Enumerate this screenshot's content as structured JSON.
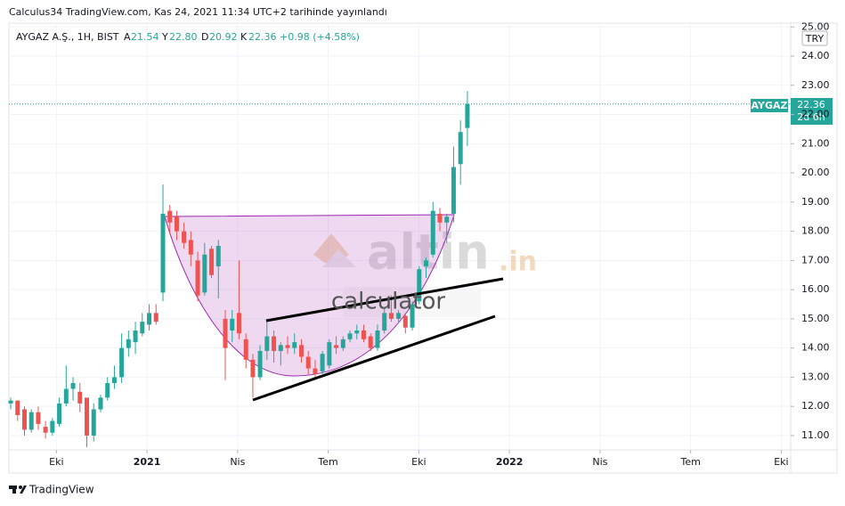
{
  "header": {
    "publisher": "Calculus34 TradingView.com, Kas 24, 2021 11:34 UTC+2 tarihinde yayınlandı",
    "symbol": "AYGAZ A.Ş., 1H, BIST",
    "open_key": "A",
    "open": "21.54",
    "high_key": "Y",
    "high": "22.80",
    "low_key": "D",
    "low": "20.92",
    "close_key": "K",
    "close": "22.36",
    "change": "+0.98 (+4.58%)"
  },
  "price_tag": {
    "name": "AYGAZ",
    "price": "22.36",
    "countdown": "2d 6h",
    "currency": "TRY"
  },
  "watermark": {
    "logo": "altin",
    "suffix": ".in",
    "subtitle": "calculator"
  },
  "footer": {
    "brand": "TradingView"
  },
  "chart_data": {
    "type": "candlestick",
    "up_color": "#26a69a",
    "down_color": "#ef5350",
    "price_line_color": "#26a69a",
    "xlim": [
      2020.619,
      2022.776
    ],
    "ylim": [
      10.51,
      25.13
    ],
    "xticks": [
      {
        "value": 2020.75,
        "label": "Eki"
      },
      2021,
      {
        "value": 2021.25,
        "label": "Nis"
      },
      {
        "value": 2021.5,
        "label": "Tem"
      },
      {
        "value": 2021.75,
        "label": "Eki"
      },
      2022,
      {
        "value": 2022.25,
        "label": "Nis"
      },
      {
        "value": 2022.5,
        "label": "Tem"
      },
      {
        "value": 2022.75,
        "label": "Eki"
      }
    ],
    "yticks": [
      {
        "value": 11,
        "label": "11.00"
      },
      {
        "value": 12,
        "label": "12.00"
      },
      {
        "value": 13,
        "label": "13.00"
      },
      {
        "value": 14,
        "label": "14.00"
      },
      {
        "value": 15,
        "label": "15.00"
      },
      {
        "value": 16,
        "label": "16.00"
      },
      {
        "value": 17,
        "label": "17.00"
      },
      {
        "value": 18,
        "label": "18.00"
      },
      {
        "value": 19,
        "label": "19.00"
      },
      {
        "value": 20,
        "label": "20.00"
      },
      {
        "value": 21,
        "label": "21.00"
      },
      {
        "value": 22,
        "label": "22.00"
      },
      {
        "value": 23,
        "label": "23.00"
      },
      {
        "value": 24,
        "label": "24.00"
      },
      {
        "value": 25,
        "label": "25.00"
      }
    ],
    "grid": true,
    "x": [
      2020.624,
      2020.643,
      2020.662,
      2020.681,
      2020.7,
      2020.72,
      2020.739,
      2020.758,
      2020.777,
      2020.796,
      2020.815,
      2020.834,
      2020.853,
      2020.872,
      2020.891,
      2020.91,
      2020.93,
      2020.949,
      2020.968,
      2020.987,
      2021.006,
      2021.025,
      2021.044,
      2021.063,
      2021.082,
      2021.102,
      2021.121,
      2021.14,
      2021.159,
      2021.178,
      2021.197,
      2021.216,
      2021.235,
      2021.254,
      2021.273,
      2021.292,
      2021.312,
      2021.331,
      2021.35,
      2021.369,
      2021.388,
      2021.407,
      2021.426,
      2021.445,
      2021.464,
      2021.484,
      2021.503,
      2021.522,
      2021.541,
      2021.56,
      2021.579,
      2021.598,
      2021.617,
      2021.636,
      2021.655,
      2021.674,
      2021.694,
      2021.713,
      2021.732,
      2021.751,
      2021.77,
      2021.789,
      2021.808,
      2021.827,
      2021.846,
      2021.865,
      2021.884
    ],
    "open": [
      12.1,
      12.2,
      11.9,
      11.2,
      11.8,
      11.3,
      11.1,
      11.4,
      12.1,
      12.6,
      12.5,
      12.3,
      11.0,
      11.9,
      12.3,
      12.8,
      13.0,
      14.0,
      14.2,
      14.5,
      14.8,
      15.2,
      15.9,
      18.7,
      18.5,
      18.0,
      17.7,
      17.0,
      15.9,
      17.4,
      16.8,
      15.0,
      14.6,
      15.2,
      14.3,
      13.6,
      13.0,
      13.9,
      14.4,
      13.9,
      14.1,
      14.0,
      14.1,
      13.7,
      13.3,
      13.2,
      13.4,
      14.1,
      14.0,
      14.3,
      14.5,
      14.6,
      14.4,
      14.0,
      14.6,
      15.2,
      15.0,
      15.1,
      14.7,
      15.6,
      16.8,
      17.2,
      18.6,
      18.3,
      18.6,
      20.3,
      21.54
    ],
    "high": [
      12.3,
      12.2,
      12.0,
      11.9,
      12.0,
      11.5,
      11.6,
      12.3,
      13.4,
      13.0,
      12.8,
      12.3,
      12.1,
      12.4,
      13.0,
      13.4,
      14.5,
      14.6,
      14.9,
      15.2,
      15.5,
      15.5,
      19.6,
      18.9,
      18.7,
      18.3,
      18.0,
      17.3,
      17.6,
      17.5,
      17.7,
      15.3,
      15.3,
      17.0,
      14.5,
      13.8,
      14.1,
      14.9,
      14.6,
      14.2,
      14.4,
      14.5,
      14.3,
      13.9,
      13.6,
      13.9,
      14.3,
      14.4,
      14.4,
      14.6,
      14.8,
      14.8,
      14.5,
      14.8,
      15.4,
      15.8,
      15.3,
      15.2,
      15.6,
      16.8,
      17.1,
      19.0,
      18.8,
      18.6,
      20.9,
      21.8,
      22.8
    ],
    "low": [
      11.9,
      11.5,
      11.0,
      11.1,
      11.2,
      10.9,
      11.0,
      11.3,
      12.0,
      12.2,
      11.8,
      10.6,
      10.8,
      11.8,
      12.2,
      12.6,
      12.8,
      13.7,
      13.8,
      14.4,
      14.6,
      14.8,
      15.6,
      17.9,
      17.7,
      17.4,
      16.8,
      15.6,
      15.8,
      16.4,
      15.7,
      12.9,
      14.2,
      14.3,
      13.3,
      12.3,
      12.9,
      13.6,
      13.5,
      13.4,
      13.8,
      13.8,
      13.5,
      13.1,
      12.9,
      13.1,
      13.3,
      13.8,
      13.9,
      14.2,
      14.3,
      14.2,
      13.9,
      13.9,
      14.5,
      14.9,
      14.9,
      14.5,
      14.6,
      15.5,
      16.4,
      17.1,
      18.0,
      17.6,
      18.3,
      19.6,
      20.92
    ],
    "close": [
      12.2,
      11.7,
      11.2,
      11.8,
      11.4,
      11.1,
      11.5,
      12.1,
      12.6,
      12.8,
      12.1,
      11.0,
      11.9,
      12.3,
      12.8,
      13.0,
      14.0,
      14.3,
      14.6,
      14.9,
      15.2,
      14.9,
      18.6,
      18.3,
      18.0,
      17.6,
      17.2,
      15.8,
      17.2,
      16.5,
      17.5,
      14.0,
      15.0,
      14.5,
      13.6,
      13.0,
      13.9,
      14.4,
      13.9,
      14.1,
      14.0,
      14.2,
      13.7,
      13.3,
      13.1,
      13.8,
      14.2,
      14.0,
      14.3,
      14.5,
      14.6,
      14.3,
      14.0,
      14.6,
      15.2,
      15.0,
      15.2,
      14.7,
      15.5,
      16.7,
      17.0,
      18.7,
      18.3,
      18.5,
      20.2,
      21.4,
      22.36
    ]
  }
}
